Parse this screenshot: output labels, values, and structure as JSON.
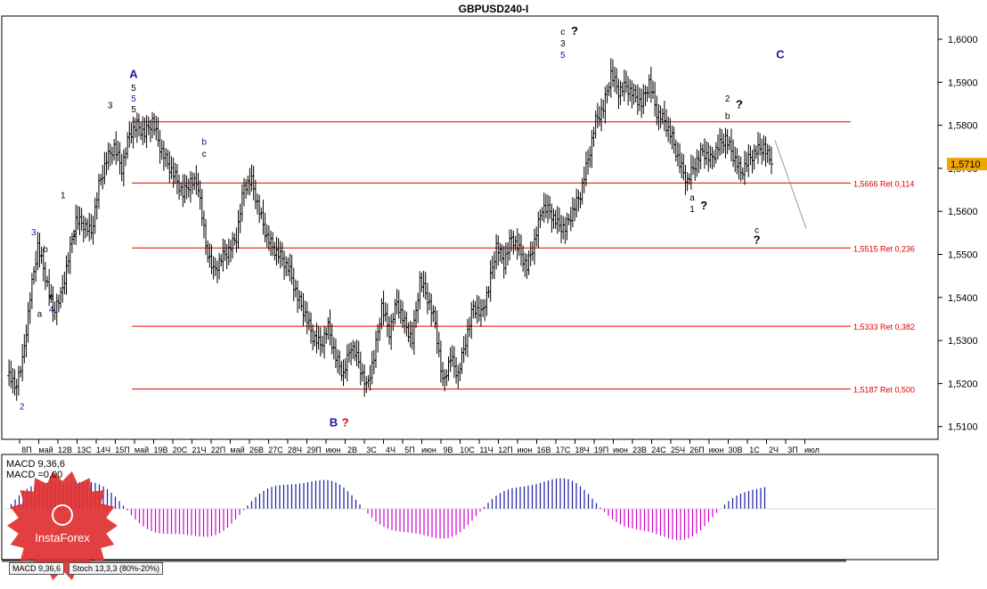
{
  "title": "GBPUSD240-I",
  "price_axis": {
    "labels": [
      "1,6000",
      "1,5900",
      "1,5800",
      "1,5700",
      "1,5600",
      "1,5500",
      "1,5400",
      "1,5300",
      "1,5200",
      "1,5100"
    ],
    "values": [
      1.6,
      1.59,
      1.58,
      1.57,
      1.56,
      1.55,
      1.54,
      1.53,
      1.52,
      1.51
    ],
    "current_label": "1,5710",
    "current_value": 1.571,
    "current_color": "#f0a500"
  },
  "time_axis": [
    "8П",
    "май",
    "12В",
    "13С",
    "14Ч",
    "15П",
    "май",
    "19В",
    "20С",
    "21Ч",
    "22П",
    "май",
    "26В",
    "27С",
    "28Ч",
    "29П",
    "июн",
    "2В",
    "3С",
    "4Ч",
    "5П",
    "июн",
    "9В",
    "10С",
    "11Ч",
    "12П",
    "июн",
    "16В",
    "17С",
    "18Ч",
    "19П",
    "июн",
    "23В",
    "24С",
    "25Ч",
    "26П",
    "июн",
    "30В",
    "1С",
    "2Ч",
    "3П",
    "июл"
  ],
  "fib_lines": [
    {
      "value": 1.5808,
      "label": ""
    },
    {
      "value": 1.5666,
      "label": "1,5666 Ret 0,114"
    },
    {
      "value": 1.5515,
      "label": "1,5515 Ret 0,236"
    },
    {
      "value": 1.5333,
      "label": "1,5333 Ret 0,382"
    },
    {
      "value": 1.5187,
      "label": "1,5187 Ret 0,500"
    }
  ],
  "indicator": {
    "macd_label": "MACD 9,36,6",
    "macd_sub_label": "MACD =0,00",
    "tabs": [
      "MACD 9,36,6",
      "Stoch 13,3,3 (80%-20%)"
    ],
    "logo_text": "InstaForex"
  },
  "colors": {
    "fib": "#e00000",
    "wave_blue": "#1a1aa0",
    "wave_black": "#000000",
    "wave_red": "#e00000",
    "macd_pos": "#1a1aa0",
    "macd_neg": "#d000d0",
    "logo": "#e03030"
  },
  "chart_data": {
    "type": "candlestick",
    "symbol": "GBPUSD240-I",
    "ylim": [
      1.507,
      1.603
    ],
    "x_labels": [
      "8П",
      "май",
      "12В",
      "13С",
      "14Ч",
      "15П",
      "май",
      "19В",
      "20С",
      "21Ч",
      "22П",
      "май",
      "26В",
      "27С",
      "28Ч",
      "29П",
      "июн",
      "2В",
      "3С",
      "4Ч",
      "5П",
      "июн",
      "9В",
      "10С",
      "11Ч",
      "12П",
      "июн",
      "16В",
      "17С",
      "18Ч",
      "19П",
      "июн",
      "23В",
      "24С",
      "25Ч",
      "26П",
      "июн",
      "30В",
      "1С",
      "2Ч",
      "3П",
      "июл"
    ],
    "close_path": [
      1.523,
      1.519,
      1.525,
      1.54,
      1.552,
      1.545,
      1.537,
      1.54,
      1.549,
      1.558,
      1.557,
      1.555,
      1.566,
      1.572,
      1.575,
      1.57,
      1.578,
      1.58,
      1.578,
      1.581,
      1.575,
      1.571,
      1.568,
      1.564,
      1.567,
      1.566,
      1.552,
      1.546,
      1.549,
      1.551,
      1.554,
      1.566,
      1.567,
      1.56,
      1.554,
      1.551,
      1.549,
      1.546,
      1.54,
      1.536,
      1.531,
      1.529,
      1.533,
      1.526,
      1.522,
      1.529,
      1.525,
      1.519,
      1.526,
      1.538,
      1.532,
      1.539,
      1.534,
      1.53,
      1.544,
      1.54,
      1.534,
      1.52,
      1.526,
      1.522,
      1.53,
      1.538,
      1.536,
      1.542,
      1.552,
      1.548,
      1.554,
      1.551,
      1.547,
      1.553,
      1.561,
      1.56,
      1.557,
      1.556,
      1.56,
      1.564,
      1.572,
      1.581,
      1.584,
      1.592,
      1.588,
      1.589,
      1.587,
      1.585,
      1.59,
      1.583,
      1.581,
      1.577,
      1.571,
      1.567,
      1.571,
      1.574,
      1.572,
      1.575,
      1.577,
      1.573,
      1.569,
      1.572,
      1.574,
      1.575,
      1.571
    ],
    "wave_labels": [
      {
        "text": "A",
        "color": "blue",
        "big": true,
        "x": 20,
        "y": 1.591
      },
      {
        "text": "5",
        "color": "black",
        "x": 20,
        "y": 1.588
      },
      {
        "text": "5",
        "color": "blue",
        "x": 20,
        "y": 1.5855
      },
      {
        "text": "5",
        "color": "black",
        "x": 20,
        "y": 1.583
      },
      {
        "text": "3",
        "color": "black",
        "x": 16,
        "y": 1.584
      },
      {
        "text": "2",
        "color": "blue",
        "x": 1,
        "y": 1.514
      },
      {
        "text": "3",
        "color": "blue",
        "x": 3,
        "y": 1.5545
      },
      {
        "text": "4",
        "color": "blue",
        "x": 6,
        "y": 1.5365
      },
      {
        "text": "a",
        "color": "black",
        "x": 4,
        "y": 1.5355
      },
      {
        "text": "c",
        "color": "black",
        "x": 6,
        "y": 1.5395
      },
      {
        "text": "b",
        "color": "black",
        "x": 5,
        "y": 1.5505
      },
      {
        "text": "1",
        "color": "black",
        "x": 8,
        "y": 1.563
      },
      {
        "text": "2",
        "color": "black",
        "x": 10,
        "y": 1.554
      },
      {
        "text": "b",
        "color": "blue",
        "x": 32,
        "y": 1.5755
      },
      {
        "text": "c",
        "color": "black",
        "x": 32,
        "y": 1.5727
      },
      {
        "text": "C",
        "color": "blue",
        "big": true,
        "x": 130,
        "y": 1.5955
      },
      {
        "text": "B",
        "color": "blue",
        "big": true,
        "x": 54,
        "y": 1.51
      },
      {
        "text": "?",
        "color": "red",
        "big": true,
        "x": 56,
        "y": 1.51
      },
      {
        "text": "c",
        "color": "black",
        "x": 93,
        "y": 1.601
      },
      {
        "text": "3",
        "color": "black",
        "x": 93,
        "y": 1.5983
      },
      {
        "text": "5",
        "color": "blue",
        "x": 93,
        "y": 1.5957
      },
      {
        "text": "?",
        "color": "black",
        "big": true,
        "x": 95,
        "y": 1.601
      },
      {
        "text": "2",
        "color": "black",
        "x": 121,
        "y": 1.5855
      },
      {
        "text": "b",
        "color": "black",
        "x": 121,
        "y": 1.5815
      },
      {
        "text": "?",
        "color": "black",
        "big": true,
        "x": 123,
        "y": 1.584
      },
      {
        "text": "c",
        "color": "black",
        "x": 126,
        "y": 1.555
      },
      {
        "text": "?",
        "color": "black",
        "big": true,
        "x": 126,
        "y": 1.5525
      },
      {
        "text": "a",
        "color": "black",
        "x": 115,
        "y": 1.5625
      },
      {
        "text": "1",
        "color": "black",
        "x": 115,
        "y": 1.5598
      },
      {
        "text": "?",
        "color": "black",
        "big": true,
        "x": 117,
        "y": 1.5605
      }
    ]
  }
}
